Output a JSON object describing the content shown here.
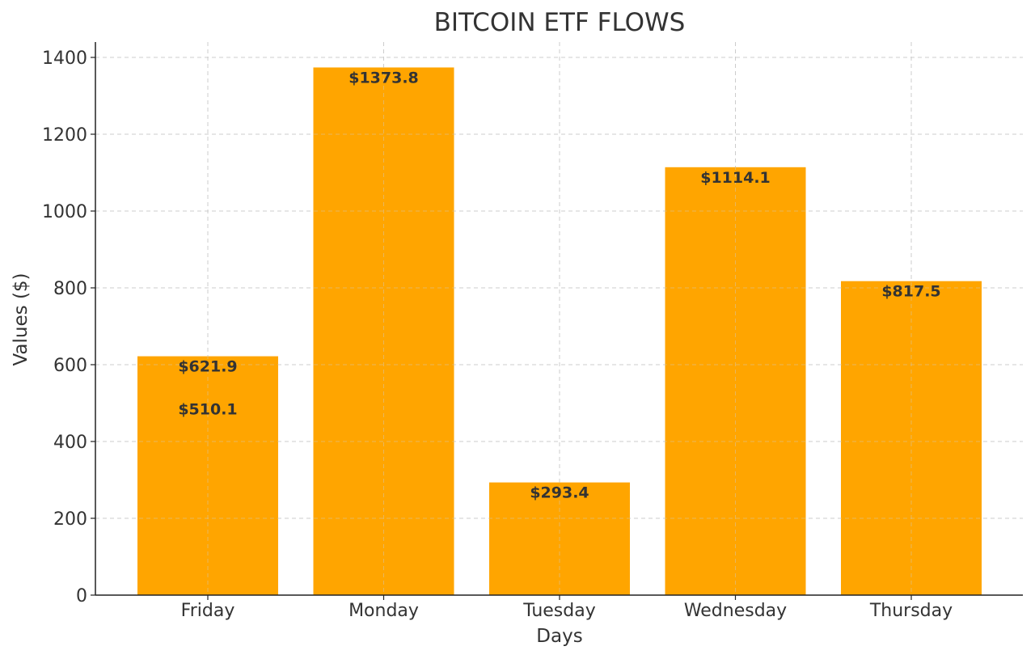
{
  "chart_data": {
    "type": "bar",
    "title": "BITCOIN ETF FLOWS",
    "xlabel": "Days",
    "ylabel": "Values ($)",
    "categories": [
      "Friday",
      "Monday",
      "Tuesday",
      "Wednesday",
      "Thursday"
    ],
    "values": [
      621.9,
      1373.8,
      293.4,
      1114.1,
      817.5
    ],
    "data_labels": [
      "$621.9",
      "$1373.8",
      "$293.4",
      "$1114.1",
      "$817.5"
    ],
    "extra_annotations": [
      {
        "category": "Friday",
        "value": 510.1,
        "label": "$510.1"
      }
    ],
    "ylim": [
      0,
      1440
    ],
    "yticks": [
      0,
      200,
      400,
      600,
      800,
      1000,
      1200,
      1400
    ],
    "ytick_labels": [
      "0",
      "200",
      "400",
      "600",
      "800",
      "1000",
      "1200",
      "1400"
    ],
    "grid": true,
    "legend": "none",
    "bar_color": "#FFA500"
  }
}
